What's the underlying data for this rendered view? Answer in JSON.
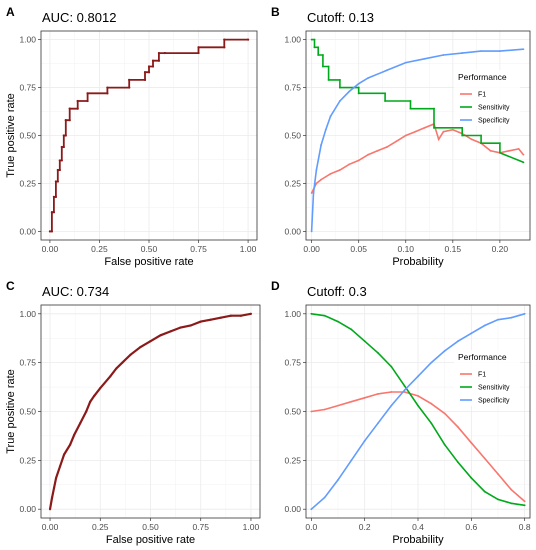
{
  "chart_data": [
    {
      "panel": "A",
      "type": "line",
      "subtype": "roc-step",
      "title": "AUC: 0.8012",
      "xlabel": "False positive rate",
      "ylabel": "True positive rate",
      "xlim": [
        0,
        1
      ],
      "ylim": [
        0,
        1
      ],
      "x_ticks": [
        "0.00",
        "0.25",
        "0.50",
        "0.75",
        "1.00"
      ],
      "y_ticks": [
        "0.00",
        "0.25",
        "0.50",
        "0.75",
        "1.00"
      ],
      "grid": true,
      "line_color": "#8B1A1A",
      "points": {
        "x": [
          0,
          0.01,
          0.01,
          0.02,
          0.02,
          0.03,
          0.03,
          0.04,
          0.04,
          0.05,
          0.05,
          0.06,
          0.06,
          0.07,
          0.07,
          0.08,
          0.08,
          0.1,
          0.1,
          0.14,
          0.14,
          0.19,
          0.19,
          0.29,
          0.29,
          0.4,
          0.4,
          0.48,
          0.48,
          0.5,
          0.5,
          0.52,
          0.52,
          0.55,
          0.55,
          0.58,
          0.58,
          0.75,
          0.75,
          0.88,
          0.88,
          1.0
        ],
        "y": [
          0,
          0,
          0.1,
          0.1,
          0.18,
          0.18,
          0.26,
          0.26,
          0.32,
          0.32,
          0.37,
          0.37,
          0.44,
          0.44,
          0.5,
          0.5,
          0.58,
          0.58,
          0.64,
          0.64,
          0.68,
          0.68,
          0.72,
          0.72,
          0.75,
          0.75,
          0.79,
          0.79,
          0.83,
          0.83,
          0.86,
          0.86,
          0.89,
          0.89,
          0.93,
          0.93,
          0.93,
          0.93,
          0.96,
          0.96,
          1.0,
          1.0
        ]
      }
    },
    {
      "panel": "B",
      "type": "line",
      "title": "Cutoff: 0.13",
      "xlabel": "Probability",
      "ylabel": "",
      "xlim": [
        -0.006,
        0.232
      ],
      "ylim": [
        0,
        1
      ],
      "x_ticks": [
        "0.00",
        "0.05",
        "0.10",
        "0.15",
        "0.20"
      ],
      "x_tick_values": [
        0,
        0.05,
        0.1,
        0.15,
        0.2
      ],
      "y_ticks": [
        "0.00",
        "0.25",
        "0.50",
        "0.75",
        "1.00"
      ],
      "grid": true,
      "legend": {
        "title": "Performance",
        "position": "right"
      },
      "series": [
        {
          "name": "F1",
          "color": "#F8766D",
          "x": [
            0,
            0.005,
            0.01,
            0.02,
            0.03,
            0.04,
            0.05,
            0.06,
            0.07,
            0.08,
            0.09,
            0.1,
            0.11,
            0.12,
            0.13,
            0.135,
            0.14,
            0.15,
            0.16,
            0.17,
            0.18,
            0.19,
            0.2,
            0.21,
            0.22,
            0.225
          ],
          "y": [
            0.2,
            0.25,
            0.27,
            0.3,
            0.32,
            0.35,
            0.37,
            0.4,
            0.42,
            0.44,
            0.47,
            0.5,
            0.52,
            0.54,
            0.56,
            0.48,
            0.52,
            0.53,
            0.51,
            0.48,
            0.46,
            0.42,
            0.41,
            0.42,
            0.43,
            0.4
          ]
        },
        {
          "name": "Sensitivity",
          "color": "#00A91B",
          "x": [
            0,
            0.003,
            0.003,
            0.007,
            0.007,
            0.012,
            0.012,
            0.018,
            0.018,
            0.03,
            0.03,
            0.05,
            0.05,
            0.078,
            0.078,
            0.105,
            0.105,
            0.13,
            0.13,
            0.16,
            0.16,
            0.18,
            0.18,
            0.2,
            0.2,
            0.225
          ],
          "y": [
            1.0,
            1.0,
            0.96,
            0.96,
            0.92,
            0.92,
            0.86,
            0.86,
            0.79,
            0.79,
            0.75,
            0.75,
            0.72,
            0.72,
            0.68,
            0.68,
            0.64,
            0.64,
            0.54,
            0.54,
            0.5,
            0.5,
            0.46,
            0.46,
            0.41,
            0.36
          ]
        },
        {
          "name": "Specificity",
          "color": "#619CFF",
          "x": [
            0,
            0.002,
            0.005,
            0.01,
            0.015,
            0.02,
            0.03,
            0.04,
            0.05,
            0.06,
            0.08,
            0.1,
            0.12,
            0.14,
            0.16,
            0.18,
            0.2,
            0.225
          ],
          "y": [
            0.0,
            0.2,
            0.32,
            0.45,
            0.53,
            0.6,
            0.68,
            0.73,
            0.77,
            0.8,
            0.84,
            0.88,
            0.9,
            0.92,
            0.93,
            0.94,
            0.94,
            0.95
          ]
        }
      ]
    },
    {
      "panel": "C",
      "type": "line",
      "subtype": "roc",
      "title": "AUC: 0.734",
      "xlabel": "False positive rate",
      "ylabel": "True positive rate",
      "xlim": [
        0,
        1
      ],
      "ylim": [
        0,
        1
      ],
      "x_ticks": [
        "0.00",
        "0.25",
        "0.50",
        "0.75",
        "1.00"
      ],
      "y_ticks": [
        "0.00",
        "0.25",
        "0.50",
        "0.75",
        "1.00"
      ],
      "grid": true,
      "line_color": "#8B1A1A",
      "points": {
        "x": [
          0,
          0.01,
          0.02,
          0.03,
          0.05,
          0.07,
          0.1,
          0.12,
          0.15,
          0.18,
          0.2,
          0.22,
          0.25,
          0.3,
          0.33,
          0.36,
          0.4,
          0.45,
          0.5,
          0.55,
          0.6,
          0.65,
          0.7,
          0.75,
          0.8,
          0.85,
          0.9,
          0.95,
          1.0
        ],
        "y": [
          0,
          0.06,
          0.11,
          0.16,
          0.22,
          0.28,
          0.33,
          0.38,
          0.44,
          0.5,
          0.55,
          0.58,
          0.62,
          0.68,
          0.72,
          0.75,
          0.79,
          0.83,
          0.86,
          0.89,
          0.91,
          0.93,
          0.94,
          0.96,
          0.97,
          0.98,
          0.99,
          0.99,
          1.0
        ]
      }
    },
    {
      "panel": "D",
      "type": "line",
      "title": "Cutoff: 0.3",
      "xlabel": "Probability",
      "ylabel": "",
      "xlim": [
        -0.02,
        0.82
      ],
      "ylim": [
        0,
        1
      ],
      "x_ticks": [
        "0.0",
        "0.2",
        "0.4",
        "0.6",
        "0.8"
      ],
      "x_tick_values": [
        0,
        0.2,
        0.4,
        0.6,
        0.8
      ],
      "y_ticks": [
        "0.00",
        "0.25",
        "0.50",
        "0.75",
        "1.00"
      ],
      "grid": true,
      "legend": {
        "title": "Performance",
        "position": "right"
      },
      "series": [
        {
          "name": "F1",
          "color": "#F8766D",
          "x": [
            0,
            0.05,
            0.1,
            0.15,
            0.2,
            0.25,
            0.3,
            0.35,
            0.4,
            0.45,
            0.5,
            0.55,
            0.6,
            0.65,
            0.7,
            0.75,
            0.8
          ],
          "y": [
            0.5,
            0.51,
            0.53,
            0.55,
            0.57,
            0.59,
            0.6,
            0.6,
            0.58,
            0.54,
            0.49,
            0.42,
            0.34,
            0.26,
            0.18,
            0.1,
            0.04
          ]
        },
        {
          "name": "Sensitivity",
          "color": "#00A91B",
          "x": [
            0,
            0.05,
            0.1,
            0.15,
            0.2,
            0.25,
            0.3,
            0.35,
            0.4,
            0.45,
            0.5,
            0.55,
            0.6,
            0.65,
            0.7,
            0.75,
            0.8
          ],
          "y": [
            1.0,
            0.99,
            0.96,
            0.92,
            0.86,
            0.8,
            0.73,
            0.63,
            0.53,
            0.44,
            0.33,
            0.24,
            0.16,
            0.09,
            0.05,
            0.03,
            0.02
          ]
        },
        {
          "name": "Specificity",
          "color": "#619CFF",
          "x": [
            0,
            0.05,
            0.1,
            0.15,
            0.2,
            0.25,
            0.3,
            0.35,
            0.4,
            0.45,
            0.5,
            0.55,
            0.6,
            0.65,
            0.7,
            0.75,
            0.8
          ],
          "y": [
            0.0,
            0.06,
            0.15,
            0.25,
            0.35,
            0.44,
            0.53,
            0.61,
            0.68,
            0.75,
            0.81,
            0.86,
            0.9,
            0.94,
            0.97,
            0.98,
            1.0
          ]
        }
      ]
    }
  ]
}
